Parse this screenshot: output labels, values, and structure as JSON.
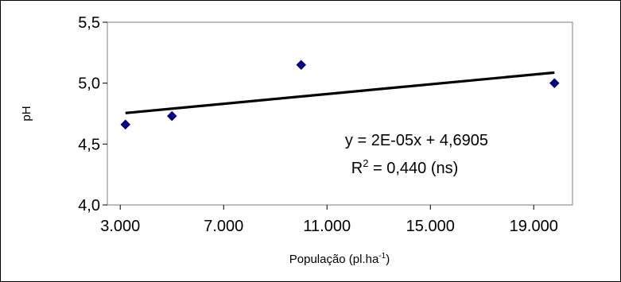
{
  "chart_data": {
    "type": "scatter",
    "xlabel": {
      "main": "População (pl.ha",
      "superscript": "-1",
      "close": ")"
    },
    "ylabel": "pH",
    "xlim": [
      2500,
      20500
    ],
    "ylim": [
      4.0,
      5.5
    ],
    "x_ticks": [
      3000,
      7000,
      11000,
      15000,
      19000
    ],
    "x_tick_labels": [
      "3.000",
      "7.000",
      "11.000",
      "15.000",
      "19.000"
    ],
    "y_ticks": [
      4.0,
      4.5,
      5.0,
      5.5
    ],
    "y_tick_labels": [
      "4,0",
      "4,5",
      "5,0",
      "5,5"
    ],
    "grid": false,
    "legend": "none",
    "series": [
      {
        "marker": "diamond",
        "color": "#000080",
        "points": [
          {
            "x": 3200,
            "y": 4.66
          },
          {
            "x": 5000,
            "y": 4.73
          },
          {
            "x": 10000,
            "y": 5.15
          },
          {
            "x": 19800,
            "y": 5.0
          }
        ]
      }
    ],
    "trendline": {
      "color": "#000000",
      "slope": 2e-05,
      "intercept": 4.6905,
      "x_range": [
        3200,
        19800
      ]
    },
    "annotations": {
      "equation": "y = 2E-05x + 4,6905",
      "r2_prefix": "R",
      "r2_superscript": "2",
      "r2_value": " = 0,440 (ns)"
    }
  }
}
